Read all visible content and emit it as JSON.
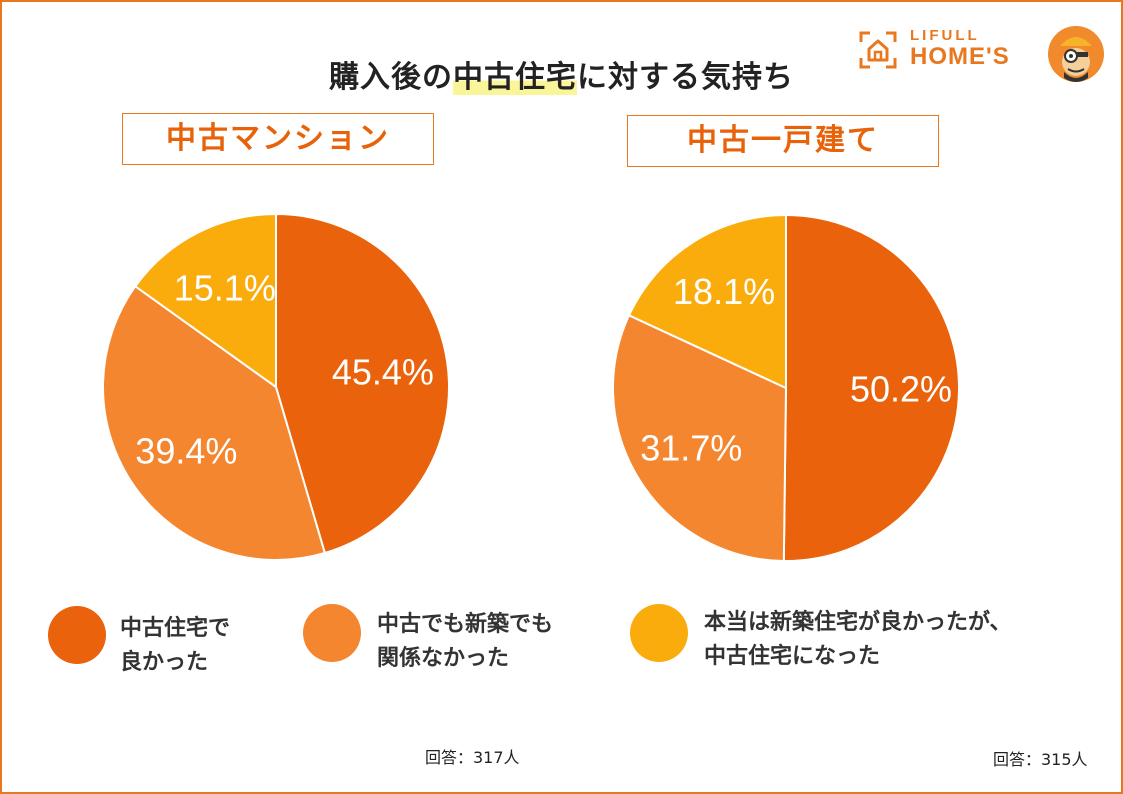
{
  "title": {
    "before": "購入後の",
    "highlight": "中古住宅",
    "after": "に対する気持ち"
  },
  "brand": {
    "line1": "LIFULL",
    "line2": "HOME'S",
    "icon": "house-icon",
    "mascot": "mascot-icon",
    "color": "#e8781f"
  },
  "colors": {
    "series1": "#ea620b",
    "series2": "#f58630",
    "series3": "#fbac0d",
    "frame": "#e8781f",
    "highlight": "#fbf59a"
  },
  "legend": [
    {
      "line1": "中古住宅で",
      "line2": "良かった"
    },
    {
      "line1": "中古でも新築でも",
      "line2": "関係なかった"
    },
    {
      "line1": "本当は新築住宅が良かったが、",
      "line2": "中古住宅になった"
    }
  ],
  "chart_data": [
    {
      "type": "pie",
      "title": "中古マンション",
      "categories": [
        "中古住宅で良かった",
        "中古でも新築でも関係なかった",
        "本当は新築住宅が良かったが、中古住宅になった"
      ],
      "values": [
        45.4,
        39.4,
        15.1
      ],
      "labels": [
        "45.4%",
        "39.4%",
        "15.1%"
      ],
      "respondents": "回答：317人"
    },
    {
      "type": "pie",
      "title": "中古一戸建て",
      "categories": [
        "中古住宅で良かった",
        "中古でも新築でも関係なかった",
        "本当は新築住宅が良かったが、中古住宅になった"
      ],
      "values": [
        50.2,
        31.7,
        18.1
      ],
      "labels": [
        "50.2%",
        "31.7%",
        "18.1%"
      ],
      "respondents": "回答：315人"
    }
  ]
}
